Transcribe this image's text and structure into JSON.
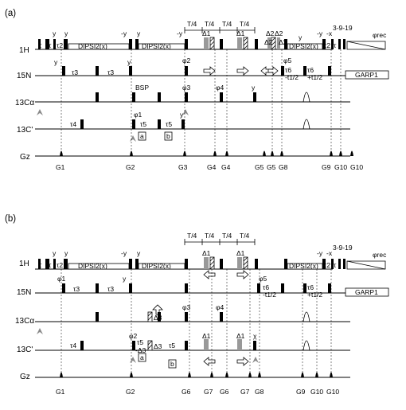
{
  "panel_a": {
    "label": "(a)",
    "channels": [
      "1H",
      "15N",
      "13Cα",
      "13C'",
      "Gz"
    ],
    "period_labels": [
      "T/4",
      "T/4",
      "T/4",
      "T/4"
    ],
    "dipsi_labels": [
      "DIPSI2(x)",
      "DIPSI2(x)",
      "DIPSI2(x)"
    ],
    "phase_labels_1h": [
      "y",
      "y",
      "-y",
      "y",
      "-y",
      "y",
      "-y",
      "-x"
    ],
    "delay_labels_1h": [
      "τ",
      "τ",
      "τ2",
      "τ2",
      "τ"
    ],
    "delta_labels": [
      "Δ1",
      "Δ1",
      "Δ2",
      "Δ2",
      "Δ2",
      "Δ2"
    ],
    "pulse_train": "3-9-19",
    "acq_label": "φrec",
    "n15_labels": [
      "τ3",
      "τ3",
      "φ2",
      "φ5",
      "τ6",
      "-t1/2",
      "τ6",
      "+t1/2",
      "y",
      "y"
    ],
    "decoupling": "GARP1",
    "ca_labels": [
      "BSP",
      "φ3",
      "φ4",
      "y"
    ],
    "co_labels": [
      "τ4",
      "φ1",
      "τ5",
      "τ5",
      "y"
    ],
    "boxes": [
      "a",
      "b"
    ],
    "gradient_labels": [
      "G1",
      "G2",
      "G3",
      "G4",
      "G4",
      "G5",
      "G5",
      "G8",
      "G9",
      "G10",
      "G10"
    ]
  },
  "panel_b": {
    "label": "(b)",
    "channels": [
      "1H",
      "15N",
      "13Cα",
      "13C'",
      "Gz"
    ],
    "period_labels": [
      "T/4",
      "T/4",
      "T/4",
      "T/4"
    ],
    "dipsi_labels": [
      "DIPSI2(x)",
      "DIPSI2(x)",
      "DIPSI2(x)"
    ],
    "phase_labels_1h": [
      "y",
      "y",
      "-y",
      "y",
      "-y",
      "-x"
    ],
    "delay_labels_1h": [
      "τ",
      "τ",
      "τ2",
      "τ2",
      "τ"
    ],
    "delta_labels": [
      "Δ1",
      "Δ1"
    ],
    "pulse_train": "3-9-19",
    "acq_label": "φrec",
    "n15_labels": [
      "φ1",
      "τ3",
      "τ3",
      "y",
      "φ5",
      "τ6",
      "-t1/2",
      "τ6",
      "+t1/2"
    ],
    "decoupling": "GARP1",
    "ca_labels": [
      "Δ3",
      "φ3",
      "φ4"
    ],
    "co_labels": [
      "τ4",
      "φ2",
      "τ5",
      "-Δ3",
      "Δ3",
      "τ5",
      "Δ1",
      "Δ1",
      "χ"
    ],
    "boxes": [
      "a",
      "b"
    ],
    "gradient_labels": [
      "G1",
      "G2",
      "G6",
      "G7",
      "G6",
      "G7",
      "G8",
      "G9",
      "G10",
      "G10"
    ]
  }
}
